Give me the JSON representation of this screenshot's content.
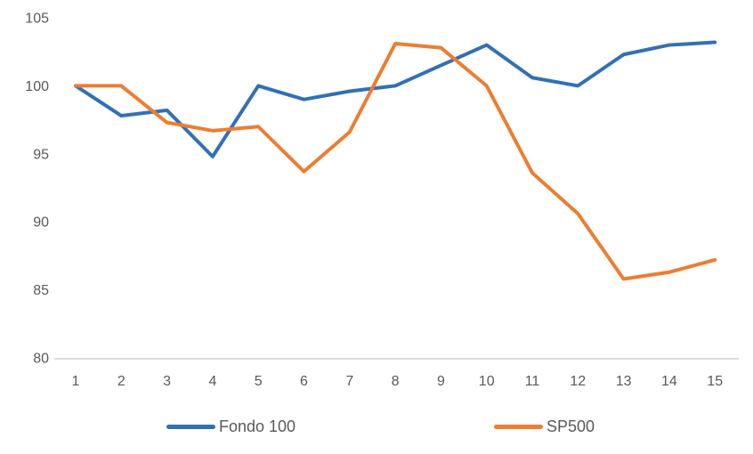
{
  "chart_data": {
    "type": "line",
    "title": "",
    "xlabel": "",
    "ylabel": "",
    "x": [
      1,
      2,
      3,
      4,
      5,
      6,
      7,
      8,
      9,
      10,
      11,
      12,
      13,
      14,
      15
    ],
    "series": [
      {
        "name": "Fondo 100",
        "color": "#3270B5",
        "values": [
          100,
          97.8,
          98.2,
          94.8,
          100,
          99,
          99.6,
          100,
          101.5,
          103,
          100.6,
          100,
          102.3,
          103,
          103.2
        ]
      },
      {
        "name": "SP500",
        "color": "#ED7D31",
        "values": [
          100,
          100,
          97.3,
          96.7,
          97,
          93.7,
          96.6,
          103.1,
          102.8,
          100,
          93.6,
          90.6,
          85.8,
          86.3,
          87.2
        ]
      }
    ],
    "ylim": [
      80,
      105
    ],
    "yticks": [
      105,
      100,
      95,
      90,
      85,
      80
    ],
    "grid": false,
    "legend_position": "bottom",
    "axis_line_color": "#D2D2D2",
    "tick_label_color": "#595959"
  }
}
